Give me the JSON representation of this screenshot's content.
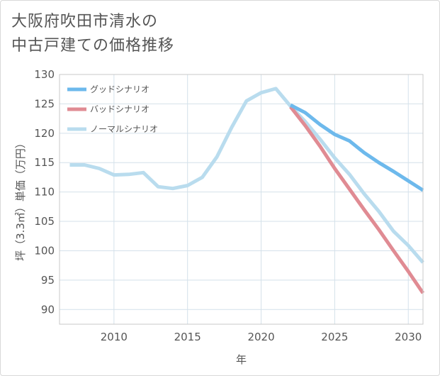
{
  "title_line1": "大阪府吹田市清水の",
  "title_line2": "中古戸建ての価格推移",
  "chart_data": {
    "type": "line",
    "xlabel": "年",
    "ylabel": "坪（3.3㎡）単価（万円）",
    "xlim": [
      2006.3,
      2031
    ],
    "ylim": [
      87.5,
      130
    ],
    "xticks": [
      2010,
      2015,
      2020,
      2025,
      2030
    ],
    "yticks": [
      90,
      95,
      100,
      105,
      110,
      115,
      120,
      125,
      130
    ],
    "grid": true,
    "legend_position": "top-left",
    "series": [
      {
        "name": "グッドシナリオ",
        "color": "#6db9ec",
        "x": [
          2022,
          2023,
          2024,
          2025,
          2026,
          2027,
          2028,
          2029,
          2030,
          2031
        ],
        "y": [
          124.8,
          123.5,
          121.5,
          119.8,
          118.7,
          116.7,
          115.0,
          113.5,
          111.9,
          110.3
        ]
      },
      {
        "name": "バッドシナリオ",
        "color": "#e08b93",
        "x": [
          2022,
          2023,
          2024,
          2025,
          2026,
          2027,
          2028,
          2029,
          2030,
          2031
        ],
        "y": [
          124.5,
          121.3,
          117.8,
          114.0,
          110.5,
          107.0,
          103.6,
          100.0,
          96.5,
          92.8
        ]
      },
      {
        "name": "ノーマルシナリオ",
        "color": "#b9dcee",
        "x": [
          2007,
          2008,
          2009,
          2010,
          2011,
          2012,
          2013,
          2014,
          2015,
          2016,
          2017,
          2018,
          2019,
          2020,
          2021,
          2022,
          2023,
          2024,
          2025,
          2026,
          2027,
          2028,
          2029,
          2030,
          2031
        ],
        "y": [
          114.6,
          114.6,
          114.0,
          112.9,
          113.0,
          113.3,
          110.9,
          110.6,
          111.1,
          112.5,
          116.0,
          121.0,
          125.5,
          126.9,
          127.6,
          124.6,
          122.0,
          119.0,
          115.8,
          113.0,
          109.7,
          106.7,
          103.3,
          100.9,
          98.0
        ]
      }
    ]
  }
}
